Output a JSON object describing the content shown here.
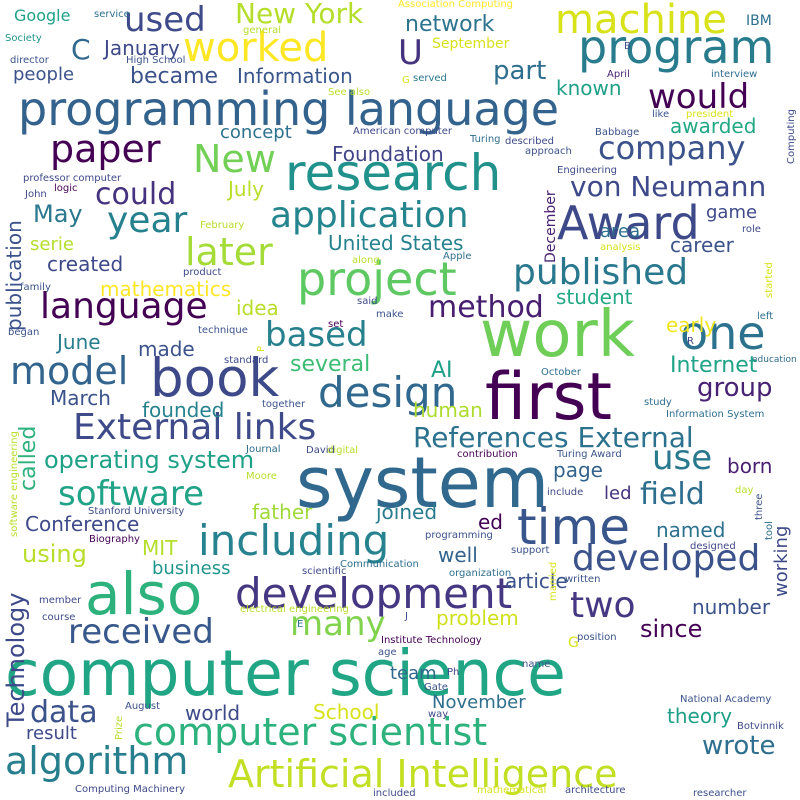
{
  "colors": {
    "palette": "viridis",
    "background": "#ffffff"
  },
  "words": [
    {
      "text": "computer science",
      "color": "#21a685"
    },
    {
      "text": "system",
      "color": "#31688e"
    },
    {
      "text": "work",
      "color": "#6ece58"
    },
    {
      "text": "first",
      "color": "#440154"
    },
    {
      "text": "programming language",
      "color": "#33638d"
    },
    {
      "text": "program",
      "color": "#287c8e"
    },
    {
      "text": "also",
      "color": "#2db27d"
    },
    {
      "text": "research",
      "color": "#21918c"
    },
    {
      "text": "time",
      "color": "#39568c"
    },
    {
      "text": "book",
      "color": "#3e4989"
    },
    {
      "text": "development",
      "color": "#453781"
    },
    {
      "text": "Award",
      "color": "#3e4989"
    },
    {
      "text": "computer scientist",
      "color": "#2db27d"
    },
    {
      "text": "Artificial Intelligence",
      "color": "#c2df23"
    },
    {
      "text": "project",
      "color": "#5ec962"
    },
    {
      "text": "one",
      "color": "#2c728e"
    },
    {
      "text": "including",
      "color": "#26828e"
    },
    {
      "text": "design",
      "color": "#31688e"
    },
    {
      "text": "developed",
      "color": "#3b528b"
    },
    {
      "text": "application",
      "color": "#25858e"
    },
    {
      "text": "External links",
      "color": "#3e4a89"
    },
    {
      "text": "worked",
      "color": "#fde725"
    },
    {
      "text": "machine",
      "color": "#d8e219"
    },
    {
      "text": "published",
      "color": "#2a788e"
    },
    {
      "text": "language",
      "color": "#440154"
    },
    {
      "text": "software",
      "color": "#20a386"
    },
    {
      "text": "algorithm",
      "color": "#277f8e"
    },
    {
      "text": "received",
      "color": "#38588c"
    },
    {
      "text": "paper",
      "color": "#440154"
    },
    {
      "text": "company",
      "color": "#3b528b"
    },
    {
      "text": "New",
      "color": "#73d056"
    },
    {
      "text": "year",
      "color": "#26818e"
    },
    {
      "text": "later",
      "color": "#a5db36"
    },
    {
      "text": "method",
      "color": "#481f70"
    },
    {
      "text": "based",
      "color": "#27808e"
    },
    {
      "text": "model",
      "color": "#32648e"
    },
    {
      "text": "would",
      "color": "#440154"
    },
    {
      "text": "used",
      "color": "#3e4a89"
    },
    {
      "text": "New York",
      "color": "#b5de2b"
    },
    {
      "text": "References External",
      "color": "#2c728e"
    },
    {
      "text": "two",
      "color": "#453781"
    },
    {
      "text": "many",
      "color": "#81d34d"
    },
    {
      "text": "use",
      "color": "#2a788e"
    },
    {
      "text": "field",
      "color": "#2e6d8e"
    },
    {
      "text": "data",
      "color": "#3b528b"
    },
    {
      "text": "wrote",
      "color": "#2e6e8e"
    },
    {
      "text": "von Neumann",
      "color": "#3e4989"
    },
    {
      "text": "could",
      "color": "#46337f"
    },
    {
      "text": "operating system",
      "color": "#1fa187"
    },
    {
      "text": "U",
      "color": "#46337f"
    },
    {
      "text": "C",
      "color": "#31688e"
    },
    {
      "text": "January",
      "color": "#3e4989"
    },
    {
      "text": "became",
      "color": "#3b528b"
    },
    {
      "text": "network",
      "color": "#2c738e"
    },
    {
      "text": "part",
      "color": "#2e6e8e"
    },
    {
      "text": "Information",
      "color": "#39568c"
    },
    {
      "text": "known",
      "color": "#1fa088"
    },
    {
      "text": "people",
      "color": "#3b528b"
    },
    {
      "text": "awarded",
      "color": "#22a884"
    },
    {
      "text": "concept",
      "color": "#2c728e"
    },
    {
      "text": "Foundation",
      "color": "#414487"
    },
    {
      "text": "May",
      "color": "#2a788e"
    },
    {
      "text": "July",
      "color": "#b8de29"
    },
    {
      "text": "area",
      "color": "#2e6e8e"
    },
    {
      "text": "game",
      "color": "#3e4989"
    },
    {
      "text": "education",
      "color": "#2f6b8e"
    },
    {
      "text": "career",
      "color": "#3b528b"
    },
    {
      "text": "United States",
      "color": "#26828e"
    },
    {
      "text": "mathematics",
      "color": "#fde725"
    },
    {
      "text": "created",
      "color": "#3e4989"
    },
    {
      "text": "serie",
      "color": "#b5de2b"
    },
    {
      "text": "idea",
      "color": "#b8de29"
    },
    {
      "text": "student",
      "color": "#22a884"
    },
    {
      "text": "early",
      "color": "#f1e51d"
    },
    {
      "text": "June",
      "color": "#287d8e"
    },
    {
      "text": "made",
      "color": "#3b528b"
    },
    {
      "text": "human",
      "color": "#addc30"
    },
    {
      "text": "several",
      "color": "#3dbc74"
    },
    {
      "text": "AI",
      "color": "#1fa088"
    },
    {
      "text": "Internet",
      "color": "#20a386"
    },
    {
      "text": "group",
      "color": "#482374"
    },
    {
      "text": "March",
      "color": "#3b528b"
    },
    {
      "text": "founded",
      "color": "#26828e"
    },
    {
      "text": "page",
      "color": "#33638d"
    },
    {
      "text": "born",
      "color": "#481f70"
    },
    {
      "text": "led",
      "color": "#46337f"
    },
    {
      "text": "Conference",
      "color": "#3e4989"
    },
    {
      "text": "father",
      "color": "#a0da39"
    },
    {
      "text": "joined",
      "color": "#287c8e"
    },
    {
      "text": "ed",
      "color": "#440154"
    },
    {
      "text": "named",
      "color": "#2c728e"
    },
    {
      "text": "MIT",
      "color": "#b5de2b"
    },
    {
      "text": "using",
      "color": "#b8de29"
    },
    {
      "text": "well",
      "color": "#33638d"
    },
    {
      "text": "business",
      "color": "#1f968b"
    },
    {
      "text": "article",
      "color": "#3b528b"
    },
    {
      "text": "problem",
      "color": "#d0e11c"
    },
    {
      "text": "number",
      "color": "#3b528b"
    },
    {
      "text": "since",
      "color": "#440154"
    },
    {
      "text": "team",
      "color": "#31688e"
    },
    {
      "text": "School",
      "color": "#d8e219"
    },
    {
      "text": "November",
      "color": "#2e6e8e"
    },
    {
      "text": "theory",
      "color": "#1fa088"
    },
    {
      "text": "world",
      "color": "#3e4989"
    },
    {
      "text": "result",
      "color": "#3e4989"
    },
    {
      "text": "Google",
      "color": "#1fa188"
    },
    {
      "text": "IBM",
      "color": "#2e6e8e"
    },
    {
      "text": "September",
      "color": "#d8e219"
    },
    {
      "text": "Technology",
      "color": "#3e4989"
    },
    {
      "text": "publication",
      "color": "#3b528b"
    },
    {
      "text": "called",
      "color": "#2db27d"
    },
    {
      "text": "working",
      "color": "#3e4989"
    },
    {
      "text": "December",
      "color": "#481f70"
    },
    {
      "text": "Association Computing",
      "color": "#fde725"
    },
    {
      "text": "Society",
      "color": "#1f968b"
    },
    {
      "text": "director",
      "color": "#3b528b"
    },
    {
      "text": "service",
      "color": "#2e6e8e"
    },
    {
      "text": "High School",
      "color": "#3b528b"
    },
    {
      "text": "general",
      "color": "#b8de29"
    },
    {
      "text": "served",
      "color": "#2a788e"
    },
    {
      "text": "See also",
      "color": "#b8de29"
    },
    {
      "text": "American computer",
      "color": "#3e4989"
    },
    {
      "text": "Turing",
      "color": "#2e6e8e"
    },
    {
      "text": "described",
      "color": "#3e4989"
    },
    {
      "text": "approach",
      "color": "#3b528b"
    },
    {
      "text": "Babbage",
      "color": "#3b528b"
    },
    {
      "text": "Engineering",
      "color": "#3e4989"
    },
    {
      "text": "professor computer",
      "color": "#3e4989"
    },
    {
      "text": "logic",
      "color": "#440154"
    },
    {
      "text": "John",
      "color": "#3e4989"
    },
    {
      "text": "interview",
      "color": "#2e6e8e"
    },
    {
      "text": "April",
      "color": "#481f70"
    },
    {
      "text": "president",
      "color": "#d8e219"
    },
    {
      "text": "like",
      "color": "#3b528b"
    },
    {
      "text": "Computing",
      "color": "#3e4989"
    },
    {
      "text": "February",
      "color": "#b8de29"
    },
    {
      "text": "role",
      "color": "#3e4989"
    },
    {
      "text": "analysis",
      "color": "#d8e219"
    },
    {
      "text": "Apple",
      "color": "#2e6e8e"
    },
    {
      "text": "along",
      "color": "#b8de29"
    },
    {
      "text": "product",
      "color": "#3e4989"
    },
    {
      "text": "family",
      "color": "#3b528b"
    },
    {
      "text": "said",
      "color": "#3e4989"
    },
    {
      "text": "set",
      "color": "#440154"
    },
    {
      "text": "make",
      "color": "#3b528b"
    },
    {
      "text": "technique",
      "color": "#3b528b"
    },
    {
      "text": "began",
      "color": "#3b528b"
    },
    {
      "text": "standard",
      "color": "#3e4989"
    },
    {
      "text": "left",
      "color": "#2e6e8e"
    },
    {
      "text": "started",
      "color": "#d8e219"
    },
    {
      "text": "October",
      "color": "#2e6e8e"
    },
    {
      "text": "Information System",
      "color": "#2e6e8e"
    },
    {
      "text": "study",
      "color": "#2e6e8e"
    },
    {
      "text": "together",
      "color": "#3b528b"
    },
    {
      "text": "Journal",
      "color": "#2e6e8e"
    },
    {
      "text": "software engineering",
      "color": "#b8de29"
    },
    {
      "text": "David",
      "color": "#3e4989"
    },
    {
      "text": "digital",
      "color": "#b8de29"
    },
    {
      "text": "contribution",
      "color": "#440154"
    },
    {
      "text": "Turing Award",
      "color": "#3b528b"
    },
    {
      "text": "Moore",
      "color": "#b8de29"
    },
    {
      "text": "include",
      "color": "#3e4989"
    },
    {
      "text": "day",
      "color": "#b8de29"
    },
    {
      "text": "three",
      "color": "#3b528b"
    },
    {
      "text": "tool",
      "color": "#2e6e8e"
    },
    {
      "text": "Stanford University",
      "color": "#3e4989"
    },
    {
      "text": "Biography",
      "color": "#440154"
    },
    {
      "text": "programming",
      "color": "#3b528b"
    },
    {
      "text": "designed",
      "color": "#3e4989"
    },
    {
      "text": "support",
      "color": "#3b528b"
    },
    {
      "text": "scientific",
      "color": "#3e4989"
    },
    {
      "text": "Communication",
      "color": "#2e6e8e"
    },
    {
      "text": "organization",
      "color": "#2e6e8e"
    },
    {
      "text": "written",
      "color": "#3b528b"
    },
    {
      "text": "married",
      "color": "#d8e219"
    },
    {
      "text": "member",
      "color": "#3e4989"
    },
    {
      "text": "electrical engineering",
      "color": "#b8de29"
    },
    {
      "text": "position",
      "color": "#3b528b"
    },
    {
      "text": "course",
      "color": "#3e4989"
    },
    {
      "text": "Institute Technology",
      "color": "#440154"
    },
    {
      "text": "age",
      "color": "#3b528b"
    },
    {
      "text": "Ph",
      "color": "#3e4989"
    },
    {
      "text": "name",
      "color": "#3b528b"
    },
    {
      "text": "Gate",
      "color": "#3b528b"
    },
    {
      "text": "way",
      "color": "#3e4989"
    },
    {
      "text": "August",
      "color": "#3b528b"
    },
    {
      "text": "National Academy",
      "color": "#3b528b"
    },
    {
      "text": "Prize",
      "color": "#b8de29"
    },
    {
      "text": "Botvinnik",
      "color": "#3e4989"
    },
    {
      "text": "Computing Machinery",
      "color": "#3e4989"
    },
    {
      "text": "included",
      "color": "#3e4989"
    },
    {
      "text": "mathematical",
      "color": "#d8e219"
    },
    {
      "text": "architecture",
      "color": "#3e4989"
    },
    {
      "text": "researcher",
      "color": "#3b528b"
    },
    {
      "text": "E",
      "color": "#2e6e8e"
    },
    {
      "text": "J",
      "color": "#3b528b"
    },
    {
      "text": "R",
      "color": "#3e4989"
    },
    {
      "text": "B",
      "color": "#3e4989"
    },
    {
      "text": "P",
      "color": "#d8e219"
    },
    {
      "text": "G",
      "color": "#d8e219"
    }
  ]
}
